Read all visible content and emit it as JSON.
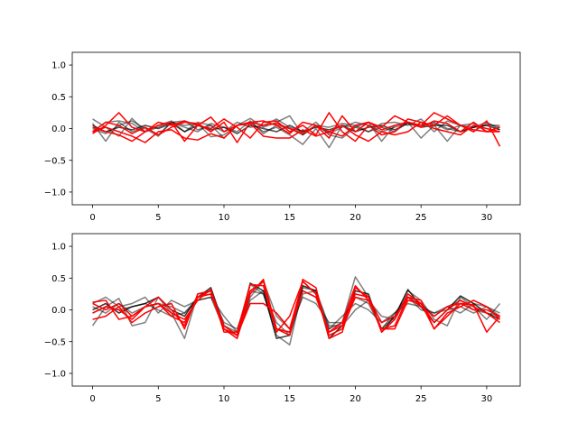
{
  "chart_data": [
    {
      "type": "line",
      "title": "",
      "xlabel": "",
      "ylabel": "",
      "xlim": [
        -1.55,
        32.55
      ],
      "ylim": [
        -1.2,
        1.2
      ],
      "x_ticks": [
        0,
        5,
        10,
        15,
        20,
        25,
        30
      ],
      "y_ticks": [
        -1.0,
        -0.5,
        0.0,
        0.5,
        1.0
      ],
      "x_tick_labels": [
        "0",
        "5",
        "10",
        "15",
        "20",
        "25",
        "30"
      ],
      "y_tick_labels": [
        "−1.0",
        "−0.5",
        "0.0",
        "0.5",
        "1.0"
      ],
      "grid": false,
      "legend": "none",
      "x": [
        0,
        1,
        2,
        3,
        4,
        5,
        6,
        7,
        8,
        9,
        10,
        11,
        12,
        13,
        14,
        15,
        16,
        17,
        18,
        19,
        20,
        21,
        22,
        23,
        24,
        25,
        26,
        27,
        28,
        29,
        30,
        31
      ],
      "series": [
        {
          "color": "#000000",
          "alpha": 0.5,
          "values": [
            0.15,
            0.02,
            -0.12,
            0.16,
            -0.05,
            0.02,
            0.1,
            0.05,
            0.08,
            -0.13,
            -0.1,
            0.05,
            0.16,
            0.02,
            0.1,
            0.2,
            -0.1,
            0.05,
            -0.08,
            0.02,
            0.1,
            0.05,
            -0.05,
            0.02,
            0.1,
            0.05,
            0.08,
            -0.02,
            0.05,
            0.02,
            0.05,
            0.05
          ]
        },
        {
          "color": "#000000",
          "alpha": 0.5,
          "values": [
            0.08,
            -0.2,
            0.1,
            -0.05,
            0.02,
            -0.1,
            0.1,
            0.12,
            -0.02,
            0.05,
            -0.15,
            0.05,
            0.1,
            -0.05,
            0.02,
            -0.1,
            -0.25,
            0.0,
            -0.3,
            0.05,
            0.02,
            0.1,
            -0.2,
            0.05,
            0.1,
            -0.15,
            0.05,
            -0.2,
            0.05,
            -0.05,
            0.08,
            0.02
          ]
        },
        {
          "color": "#000000",
          "alpha": 0.5,
          "values": [
            -0.05,
            0.1,
            0.12,
            0.08,
            -0.05,
            0.05,
            0.12,
            -0.05,
            0.1,
            0.05,
            -0.05,
            0.1,
            0.02,
            0.05,
            0.15,
            0.02,
            -0.05,
            0.1,
            -0.1,
            -0.15,
            0.02,
            -0.05,
            0.08,
            0.1,
            0.05,
            0.15,
            -0.05,
            0.12,
            0.05,
            0.08,
            -0.05,
            0.02
          ]
        },
        {
          "color": "#000000",
          "alpha": 0.5,
          "values": [
            0.0,
            -0.08,
            0.05,
            0.12,
            0.0,
            -0.12,
            0.1,
            0.02,
            -0.05,
            0.08,
            0.02,
            -0.05,
            0.12,
            -0.08,
            0.05,
            0.0,
            -0.1,
            0.05,
            0.02,
            0.08,
            0.05,
            -0.05,
            0.02,
            -0.05,
            0.1,
            0.05,
            0.1,
            0.0,
            -0.05,
            0.02,
            0.1,
            -0.02
          ]
        },
        {
          "color": "#000000",
          "alpha": 0.7,
          "values": [
            0.05,
            -0.05,
            0.02,
            -0.02,
            0.05,
            0.0,
            0.08,
            -0.05,
            0.05,
            -0.02,
            0.02,
            -0.08,
            0.05,
            0.0,
            -0.05,
            0.05,
            -0.05,
            0.02,
            -0.02,
            0.05,
            -0.05,
            0.02,
            0.05,
            -0.02,
            0.08,
            0.02,
            0.05,
            0.05,
            -0.05,
            0.02,
            0.05,
            -0.02
          ]
        },
        {
          "color": "#ff0000",
          "alpha": 1.0,
          "values": [
            -0.08,
            0.05,
            0.25,
            0.02,
            -0.05,
            0.05,
            0.1,
            -0.2,
            0.05,
            0.18,
            -0.05,
            0.05,
            0.1,
            0.12,
            0.05,
            -0.08,
            0.1,
            0.05,
            -0.05,
            -0.12,
            0.05,
            0.1,
            0.02,
            0.2,
            0.1,
            0.05,
            0.25,
            0.15,
            0.05,
            -0.05,
            0.12,
            -0.28
          ]
        },
        {
          "color": "#ff0000",
          "alpha": 1.0,
          "values": [
            0.02,
            -0.05,
            -0.1,
            -0.2,
            -0.05,
            0.1,
            0.05,
            0.12,
            0.05,
            0.0,
            0.15,
            0.02,
            -0.15,
            0.1,
            0.12,
            -0.05,
            0.05,
            -0.1,
            0.25,
            -0.05,
            -0.2,
            0.05,
            -0.1,
            -0.05,
            0.15,
            0.1,
            0.05,
            0.2,
            0.05,
            -0.02,
            -0.05,
            -0.05
          ]
        },
        {
          "color": "#ff0000",
          "alpha": 1.0,
          "values": [
            -0.05,
            0.02,
            -0.05,
            -0.12,
            -0.22,
            -0.05,
            -0.02,
            -0.15,
            -0.18,
            -0.08,
            -0.15,
            0.05,
            0.08,
            -0.12,
            -0.15,
            -0.15,
            -0.02,
            -0.12,
            -0.05,
            0.05,
            -0.1,
            -0.2,
            -0.05,
            -0.1,
            -0.05,
            0.1,
            0.0,
            -0.05,
            -0.1,
            0.05,
            0.0,
            -0.05
          ]
        },
        {
          "color": "#ff0000",
          "alpha": 1.0,
          "values": [
            -0.05,
            0.1,
            0.05,
            -0.08,
            0.02,
            -0.1,
            0.02,
            0.1,
            0.08,
            -0.05,
            0.1,
            -0.22,
            0.1,
            0.05,
            0.08,
            0.0,
            -0.08,
            0.05,
            -0.15,
            0.2,
            -0.05,
            0.1,
            -0.02,
            0.05,
            0.1,
            0.02,
            0.12,
            0.08,
            -0.05,
            0.1,
            -0.05,
            0.02
          ]
        }
      ]
    },
    {
      "type": "line",
      "title": "",
      "xlabel": "",
      "ylabel": "",
      "xlim": [
        -1.55,
        32.55
      ],
      "ylim": [
        -1.2,
        1.2
      ],
      "x_ticks": [
        0,
        5,
        10,
        15,
        20,
        25,
        30
      ],
      "y_ticks": [
        -1.0,
        -0.5,
        0.0,
        0.5,
        1.0
      ],
      "x_tick_labels": [
        "0",
        "5",
        "10",
        "15",
        "20",
        "25",
        "30"
      ],
      "y_tick_labels": [
        "−1.0",
        "−0.5",
        "0.0",
        "0.5",
        "1.0"
      ],
      "grid": false,
      "legend": "none",
      "x": [
        0,
        1,
        2,
        3,
        4,
        5,
        6,
        7,
        8,
        9,
        10,
        11,
        12,
        13,
        14,
        15,
        16,
        17,
        18,
        19,
        20,
        21,
        22,
        23,
        24,
        25,
        26,
        27,
        28,
        29,
        30,
        31
      ],
      "series": [
        {
          "color": "#000000",
          "alpha": 0.5,
          "values": [
            -0.25,
            0.05,
            0.18,
            -0.25,
            -0.2,
            0.2,
            -0.05,
            -0.45,
            0.25,
            0.3,
            -0.25,
            -0.35,
            0.4,
            0.25,
            -0.4,
            -0.55,
            0.35,
            0.3,
            -0.3,
            -0.2,
            0.52,
            0.2,
            -0.3,
            -0.1,
            0.3,
            0.15,
            -0.15,
            -0.25,
            0.2,
            0.05,
            -0.15,
            0.1
          ]
        },
        {
          "color": "#000000",
          "alpha": 0.5,
          "values": [
            0.1,
            0.2,
            0.05,
            0.1,
            0.2,
            -0.05,
            0.15,
            0.05,
            0.15,
            0.2,
            -0.3,
            -0.45,
            0.2,
            0.45,
            -0.1,
            -0.3,
            0.2,
            0.1,
            -0.2,
            -0.2,
            0.2,
            0.1,
            -0.3,
            -0.05,
            0.2,
            0.0,
            -0.05,
            0.0,
            0.05,
            -0.05,
            0.05,
            -0.1
          ]
        },
        {
          "color": "#000000",
          "alpha": 0.5,
          "values": [
            0.05,
            -0.05,
            0.1,
            -0.05,
            0.05,
            0.1,
            0.05,
            -0.05,
            0.2,
            0.25,
            -0.2,
            -0.3,
            0.3,
            0.25,
            -0.3,
            -0.35,
            0.3,
            0.2,
            -0.3,
            -0.1,
            0.1,
            0.0,
            -0.2,
            -0.05,
            0.1,
            0.05,
            -0.05,
            0.05,
            0.15,
            0.0,
            -0.05,
            -0.1
          ]
        },
        {
          "color": "#000000",
          "alpha": 0.5,
          "values": [
            -0.05,
            0.05,
            0.0,
            0.05,
            0.1,
            0.0,
            -0.1,
            -0.05,
            0.15,
            0.2,
            -0.1,
            -0.35,
            0.15,
            0.3,
            -0.2,
            -0.4,
            0.25,
            0.3,
            -0.25,
            -0.25,
            0.0,
            0.15,
            -0.1,
            -0.15,
            0.2,
            0.1,
            -0.1,
            0.05,
            -0.05,
            0.1,
            0.05,
            -0.05
          ]
        },
        {
          "color": "#000000",
          "alpha": 0.8,
          "values": [
            0.0,
            0.1,
            -0.05,
            0.05,
            0.1,
            0.2,
            0.0,
            -0.1,
            0.2,
            0.35,
            -0.25,
            -0.4,
            0.42,
            0.3,
            -0.45,
            -0.4,
            0.38,
            0.3,
            -0.45,
            -0.25,
            0.3,
            0.25,
            -0.35,
            -0.1,
            0.32,
            0.05,
            -0.2,
            0.0,
            0.22,
            0.1,
            -0.05,
            -0.15
          ]
        },
        {
          "color": "#ff0000",
          "alpha": 1.0,
          "values": [
            0.1,
            0.0,
            0.1,
            -0.1,
            0.05,
            0.2,
            0.0,
            -0.25,
            0.2,
            0.25,
            -0.3,
            -0.4,
            0.3,
            0.45,
            -0.3,
            -0.4,
            0.48,
            0.35,
            -0.45,
            -0.35,
            0.35,
            0.2,
            -0.35,
            -0.15,
            0.25,
            0.1,
            -0.2,
            0.0,
            0.15,
            0.05,
            -0.05,
            -0.2
          ]
        },
        {
          "color": "#ff0000",
          "alpha": 1.0,
          "values": [
            0.12,
            0.15,
            -0.15,
            -0.1,
            0.05,
            0.1,
            -0.05,
            -0.15,
            0.15,
            0.32,
            -0.35,
            -0.35,
            0.4,
            0.38,
            -0.35,
            -0.1,
            0.45,
            0.25,
            -0.4,
            -0.3,
            0.2,
            0.15,
            -0.3,
            -0.25,
            0.2,
            0.15,
            -0.3,
            -0.1,
            0.1,
            0.08,
            -0.35,
            -0.1
          ]
        },
        {
          "color": "#ff0000",
          "alpha": 1.0,
          "values": [
            -0.15,
            -0.1,
            0.05,
            -0.2,
            -0.05,
            0.05,
            0.1,
            -0.3,
            0.25,
            0.3,
            -0.25,
            -0.4,
            0.1,
            0.1,
            -0.05,
            -0.3,
            0.45,
            0.25,
            -0.35,
            -0.2,
            0.38,
            0.15,
            -0.3,
            -0.3,
            0.15,
            0.1,
            -0.3,
            -0.05,
            0.05,
            0.15,
            0.05,
            -0.15
          ]
        },
        {
          "color": "#ff0000",
          "alpha": 1.0,
          "values": [
            -0.05,
            0.05,
            0.0,
            -0.15,
            0.05,
            0.1,
            -0.1,
            -0.2,
            0.2,
            0.3,
            -0.3,
            -0.45,
            0.25,
            0.48,
            -0.3,
            -0.35,
            0.3,
            0.2,
            -0.35,
            -0.25,
            0.25,
            0.2,
            -0.2,
            -0.1,
            0.2,
            0.05,
            -0.1,
            0.05,
            0.1,
            0.0,
            0.0,
            -0.1
          ]
        }
      ]
    }
  ]
}
